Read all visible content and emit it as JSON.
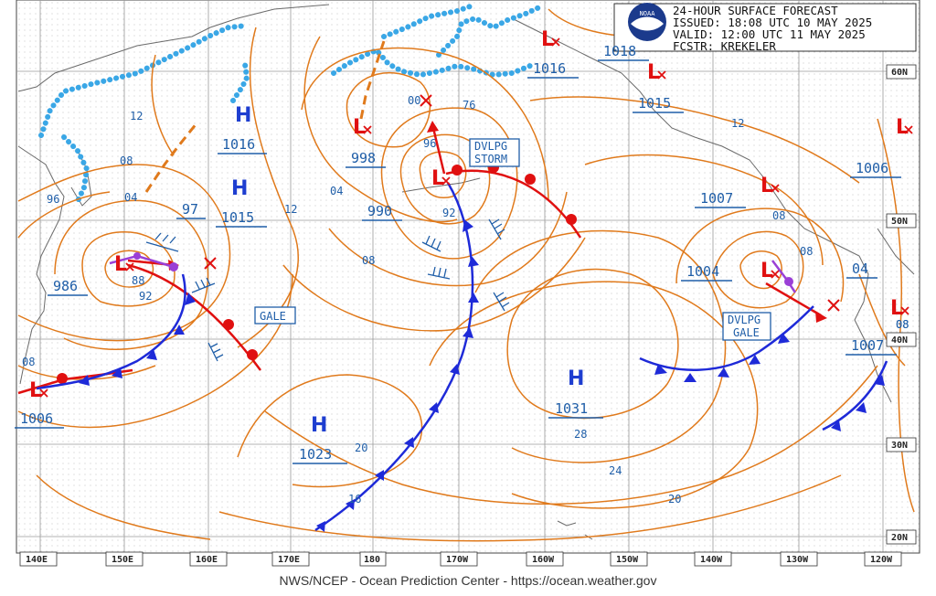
{
  "header": {
    "title": "24-HOUR SURFACE FORECAST",
    "issued": "ISSUED: 18:08 UTC 10 MAY 2025",
    "valid": "VALID:  12:00 UTC 11 MAY 2025",
    "forecaster": "FCSTR:  KREKELER",
    "logo_text": "NOAA"
  },
  "footer": "NWS/NCEP - Ocean Prediction Center - https://ocean.weather.gov",
  "longitude_labels": [
    "140E",
    "150E",
    "160E",
    "170E",
    "180",
    "170W",
    "160W",
    "150W",
    "140W",
    "130W",
    "120W"
  ],
  "latitude_labels": [
    "60N",
    "50N",
    "40N",
    "30N",
    "20N"
  ],
  "highs": [
    {
      "symbol": "H",
      "pressure": "1016"
    },
    {
      "symbol": "H",
      "pressure": "1015"
    },
    {
      "symbol": "H",
      "pressure": "1023"
    },
    {
      "symbol": "H",
      "pressure": "1031"
    }
  ],
  "lows": [
    {
      "symbol": "L",
      "pressure": "986"
    },
    {
      "symbol": "L",
      "pressure": "998"
    },
    {
      "symbol": "L",
      "pressure": "990"
    },
    {
      "symbol": "L",
      "pressure": "1006"
    },
    {
      "symbol": "L",
      "pressure": "1004"
    },
    {
      "symbol": "L",
      "pressure": "1007"
    },
    {
      "symbol": "L",
      "pressure": "1006"
    },
    {
      "symbol": "L",
      "pressure": "1007"
    },
    {
      "symbol": "L",
      "pressure": "04"
    },
    {
      "symbol": "L",
      "pressure": "1016"
    },
    {
      "symbol": "L",
      "pressure": "1015"
    },
    {
      "symbol": "L",
      "pressure": "97"
    },
    {
      "symbol": "L",
      "pressure": "1018"
    }
  ],
  "isobar_labels": [
    "12",
    "08",
    "04",
    "96",
    "92",
    "88",
    "08",
    "04",
    "12",
    "08",
    "92",
    "96",
    "00",
    "76",
    "12",
    "08",
    "08",
    "28",
    "24",
    "20",
    "20",
    "16",
    "08",
    "08"
  ],
  "warnings": [
    "GALE",
    "DVLPG STORM",
    "DVLPG GALE"
  ],
  "colors": {
    "isobar": "#e07a1c",
    "cold_front": "#1e2ad8",
    "warm_front": "#e01010",
    "occluded_front": "#9a3fd6",
    "ice_edge": "#3aa7e6",
    "high": "#1e3ed0",
    "low": "#e01010",
    "label": "#1f5ea8"
  }
}
